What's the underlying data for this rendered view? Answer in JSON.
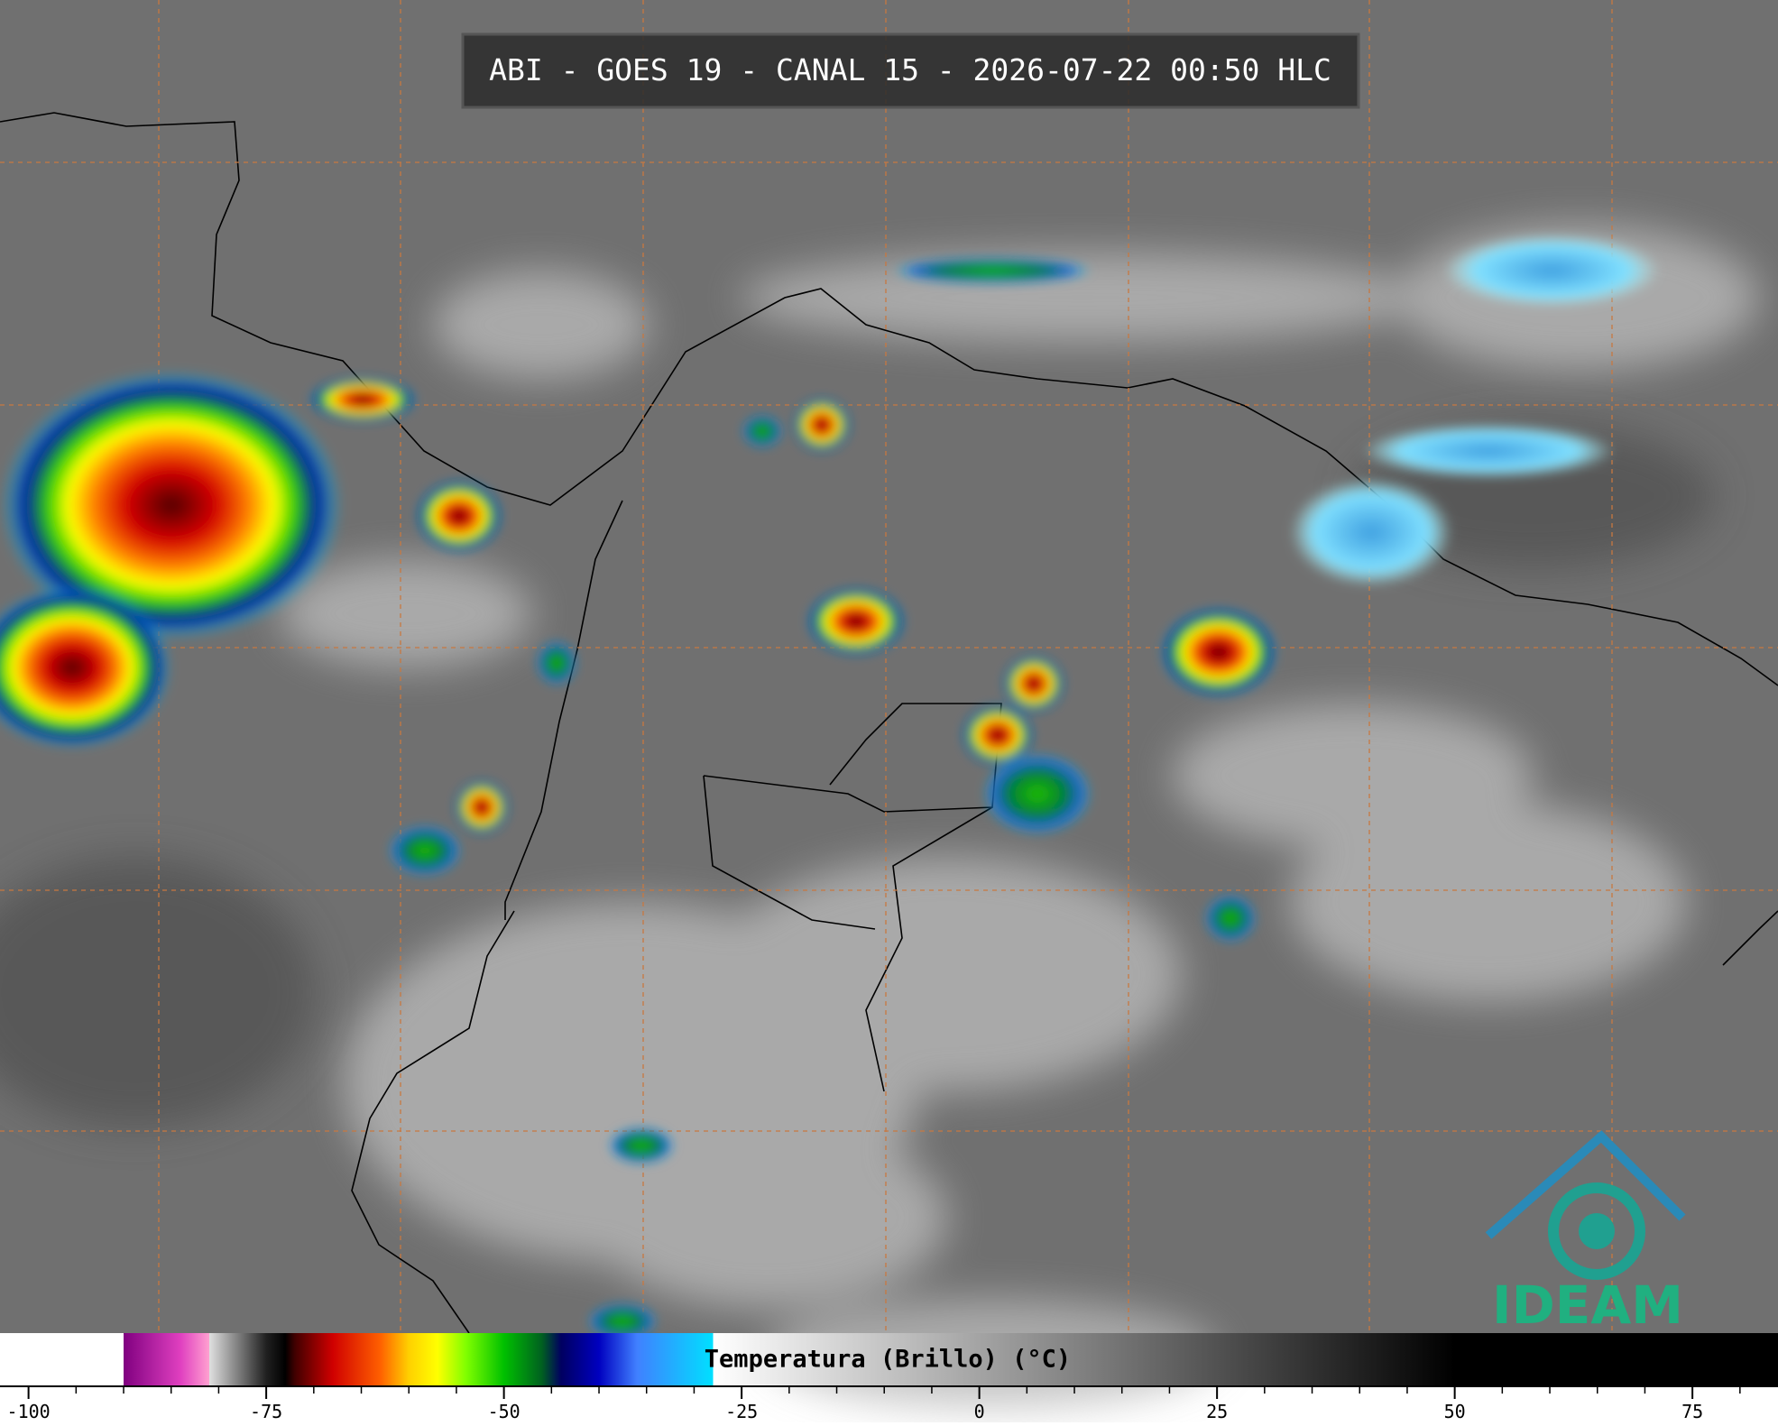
{
  "title": "ABI - GOES 19 - CANAL 15 - 2026-07-22 00:50 HLC",
  "logo": "IDEAM",
  "colorbar": {
    "label": "Temperatura (Brillo) (°C)",
    "xlim": [
      -103,
      84
    ],
    "xticks": [
      -100,
      -75,
      -50,
      -25,
      0,
      25,
      50,
      75
    ],
    "minor_xticks": [
      -95,
      -90,
      -85,
      -80,
      -70,
      -65,
      -60,
      -55,
      -45,
      -40,
      -35,
      -30,
      -20,
      -15,
      -10,
      -5,
      5,
      10,
      15,
      20,
      30,
      35,
      40,
      45,
      55,
      60,
      65,
      70,
      80
    ],
    "stops": [
      {
        "value": -103,
        "color": "#ffffff"
      },
      {
        "value": -90,
        "color": "#ffffff"
      },
      {
        "value": -90,
        "color": "#800080"
      },
      {
        "value": -84,
        "color": "#e040c0"
      },
      {
        "value": -81,
        "color": "#ffa0d0"
      },
      {
        "value": -81,
        "color": "#e0e0e0"
      },
      {
        "value": -75,
        "color": "#202020"
      },
      {
        "value": -73,
        "color": "#000000"
      },
      {
        "value": -72,
        "color": "#400000"
      },
      {
        "value": -68,
        "color": "#d00000"
      },
      {
        "value": -63,
        "color": "#ff6000"
      },
      {
        "value": -60,
        "color": "#ffd000"
      },
      {
        "value": -57,
        "color": "#ffff00"
      },
      {
        "value": -54,
        "color": "#80ff00"
      },
      {
        "value": -50,
        "color": "#00c000"
      },
      {
        "value": -46,
        "color": "#006020"
      },
      {
        "value": -44,
        "color": "#000060"
      },
      {
        "value": -40,
        "color": "#0000c0"
      },
      {
        "value": -36,
        "color": "#4080ff"
      },
      {
        "value": -28,
        "color": "#00e0ff"
      },
      {
        "value": -28,
        "color": "#ffffff"
      },
      {
        "value": 50,
        "color": "#000000"
      },
      {
        "value": 84,
        "color": "#000000"
      }
    ]
  }
}
